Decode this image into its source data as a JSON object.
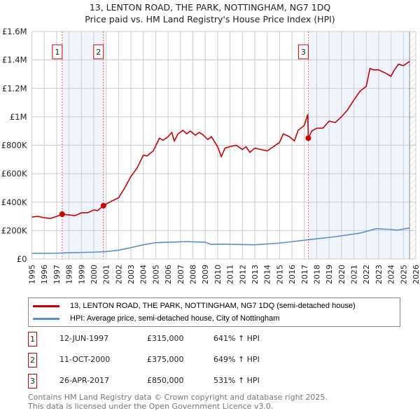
{
  "chart_data": {
    "type": "line",
    "title": "13, LENTON ROAD, THE PARK, NOTTINGHAM, NG7 1DQ",
    "subtitle": "Price paid vs. HM Land Registry's House Price Index (HPI)",
    "xlim": [
      1995,
      2026
    ],
    "ylim": [
      0,
      1600000
    ],
    "yticks": [
      {
        "v": 0,
        "label": "£0"
      },
      {
        "v": 200000,
        "label": "£200K"
      },
      {
        "v": 400000,
        "label": "£400K"
      },
      {
        "v": 600000,
        "label": "£600K"
      },
      {
        "v": 800000,
        "label": "£800K"
      },
      {
        "v": 1000000,
        "label": "£1M"
      },
      {
        "v": 1200000,
        "label": "£1.2M"
      },
      {
        "v": 1400000,
        "label": "£1.4M"
      },
      {
        "v": 1600000,
        "label": "£1.6M"
      }
    ],
    "xticks": [
      "1995",
      "1996",
      "1997",
      "1998",
      "1999",
      "2000",
      "2001",
      "2002",
      "2003",
      "2004",
      "2005",
      "2006",
      "2007",
      "2008",
      "2009",
      "2010",
      "2011",
      "2012",
      "2013",
      "2014",
      "2015",
      "2016",
      "2017",
      "2018",
      "2019",
      "2020",
      "2021",
      "2022",
      "2023",
      "2024",
      "2025",
      "2026"
    ],
    "grid": true,
    "series": [
      {
        "name": "13, LENTON ROAD, THE PARK, NOTTINGHAM, NG7 1DQ (semi-detached house)",
        "color": "#cc0000",
        "x": [
          1995,
          1995.5,
          1996,
          1996.5,
          1997,
          1997.45,
          1998,
          1998.5,
          1999,
          1999.5,
          2000,
          2000.3,
          2000.78,
          2001.5,
          2002,
          2002.5,
          2003,
          2003.5,
          2004,
          2004.3,
          2004.8,
          2005.3,
          2005.6,
          2006,
          2006.3,
          2006.5,
          2006.8,
          2007.2,
          2007.5,
          2007.8,
          2008.2,
          2008.5,
          2008.8,
          2009.2,
          2009.5,
          2010,
          2010.3,
          2010.6,
          2011,
          2011.5,
          2012,
          2012.3,
          2012.6,
          2013,
          2013.5,
          2014,
          2014.5,
          2015,
          2015.3,
          2015.8,
          2016.2,
          2016.5,
          2017,
          2017.28,
          2017.32,
          2017.6,
          2018,
          2018.5,
          2019,
          2019.5,
          2020,
          2020.5,
          2021,
          2021.5,
          2022,
          2022.3,
          2022.6,
          2023,
          2023.5,
          2024,
          2024.2,
          2024.6,
          2025,
          2025.5
        ],
        "y": [
          295000,
          300000,
          290000,
          285000,
          300000,
          315000,
          310000,
          305000,
          325000,
          325000,
          345000,
          340000,
          375000,
          410000,
          430000,
          500000,
          580000,
          640000,
          730000,
          725000,
          760000,
          850000,
          835000,
          860000,
          890000,
          830000,
          880000,
          905000,
          880000,
          900000,
          870000,
          890000,
          875000,
          840000,
          860000,
          790000,
          720000,
          780000,
          790000,
          800000,
          770000,
          790000,
          750000,
          780000,
          770000,
          760000,
          790000,
          820000,
          880000,
          860000,
          830000,
          905000,
          940000,
          1018000,
          850000,
          900000,
          920000,
          920000,
          970000,
          960000,
          1000000,
          1050000,
          1118000,
          1180000,
          1215000,
          1340000,
          1330000,
          1330000,
          1310000,
          1285000,
          1320000,
          1370000,
          1360000,
          1390000
        ]
      },
      {
        "name": "HPI: Average price, semi-detached house, City of Nottingham",
        "color": "#5b8fd0",
        "x": [
          1995,
          1997,
          1998,
          2000,
          2001,
          2002,
          2003,
          2004,
          2005,
          2006,
          2007.5,
          2009,
          2009.5,
          2010,
          2013,
          2015,
          2017.3,
          2019.5,
          2021.5,
          2022.8,
          2024,
          2024.5,
          2025.5
        ],
        "y": [
          40000,
          41000,
          44000,
          48000,
          52000,
          62000,
          80000,
          100000,
          115000,
          118000,
          122000,
          118000,
          102000,
          105000,
          100000,
          112000,
          135000,
          157000,
          182000,
          213000,
          208000,
          203000,
          218000
        ]
      }
    ],
    "sales": [
      {
        "n": "1",
        "x": 1997.45,
        "y": 315000
      },
      {
        "n": "2",
        "x": 2000.78,
        "y": 375000
      },
      {
        "n": "3",
        "x": 2017.32,
        "y": 850000
      }
    ],
    "data_end": 2025.5
  },
  "legend": [
    "13, LENTON ROAD, THE PARK, NOTTINGHAM, NG7 1DQ (semi-detached house)",
    "HPI: Average price, semi-detached house, City of Nottingham"
  ],
  "table": [
    {
      "n": "1",
      "date": "12-JUN-1997",
      "price": "£315,000",
      "hpi": "641% ↑ HPI"
    },
    {
      "n": "2",
      "date": "11-OCT-2000",
      "price": "£375,000",
      "hpi": "649% ↑ HPI"
    },
    {
      "n": "3",
      "date": "26-APR-2017",
      "price": "£850,000",
      "hpi": "531% ↑ HPI"
    }
  ],
  "footer": [
    "Contains HM Land Registry data © Crown copyright and database right 2025.",
    "This data is licensed under the Open Government Licence v3.0."
  ]
}
